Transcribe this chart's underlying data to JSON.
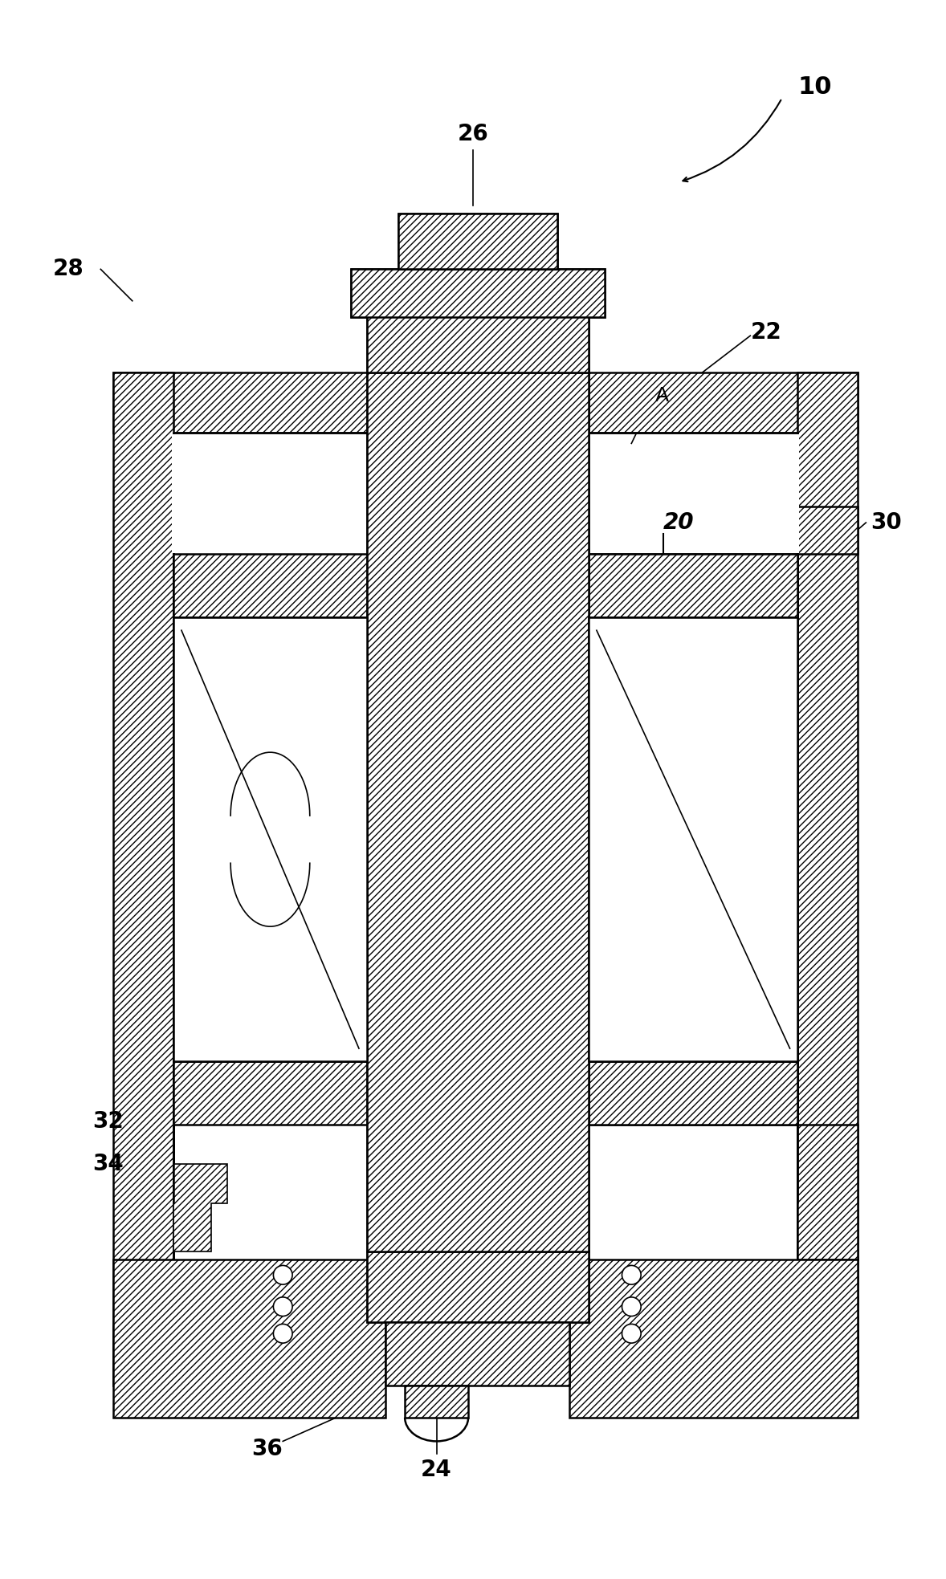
{
  "bg_color": "#ffffff",
  "lc": "#000000",
  "fig_width": 11.78,
  "fig_height": 19.67,
  "dpi": 100
}
